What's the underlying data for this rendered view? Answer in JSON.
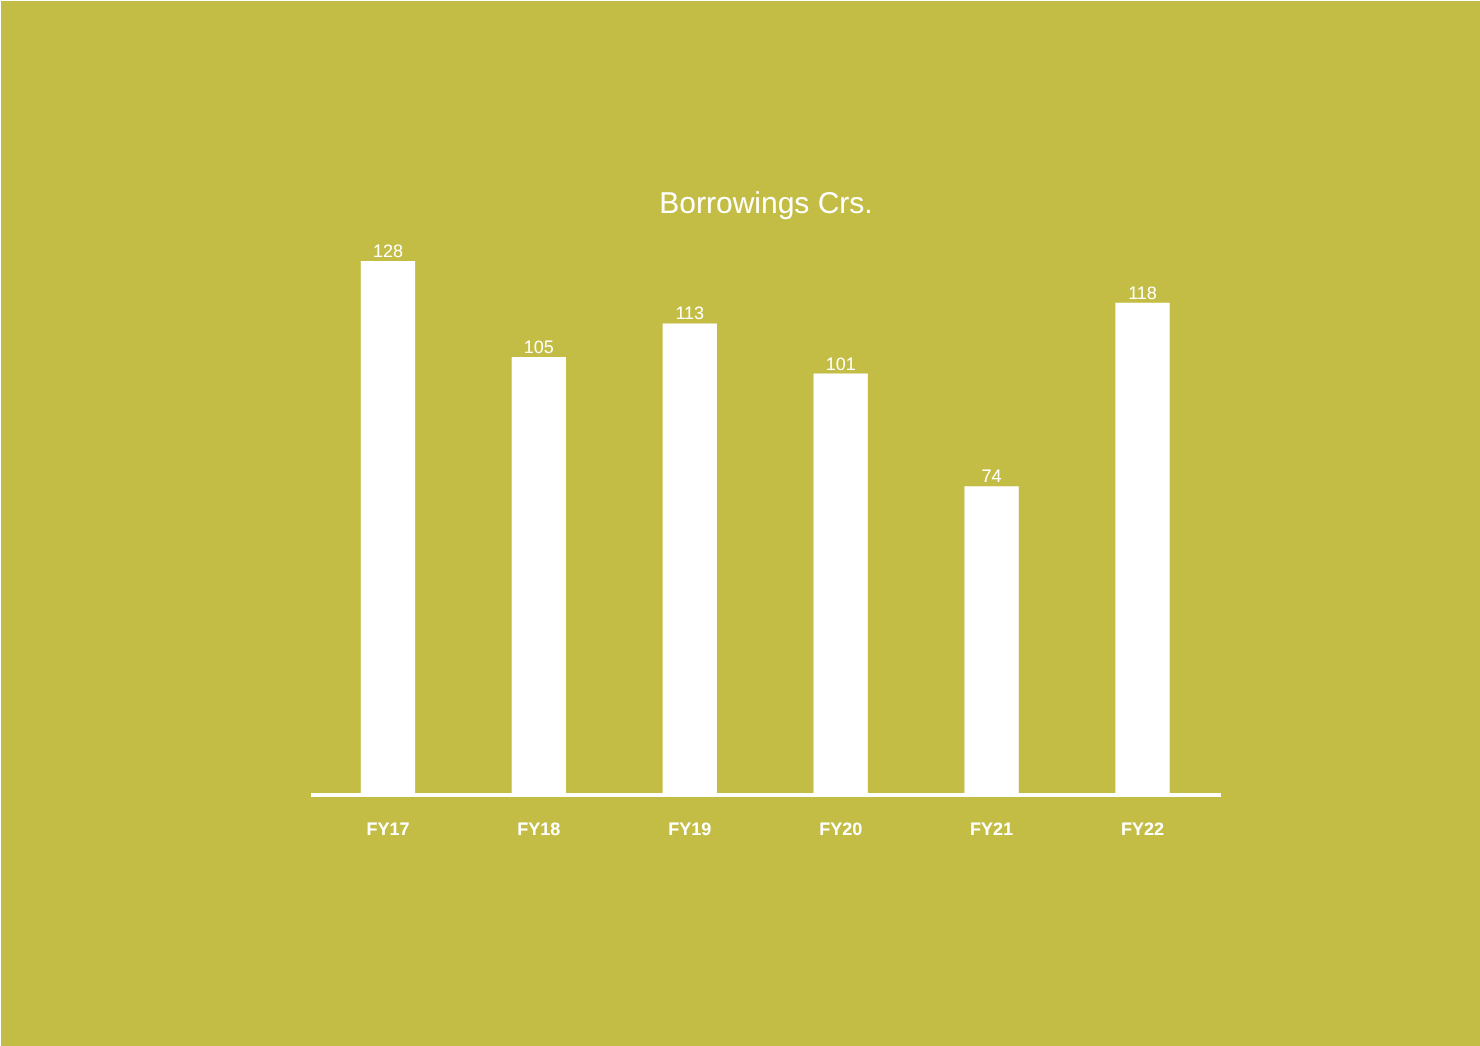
{
  "chart_data": {
    "type": "bar",
    "title": "Borrowings Crs.",
    "categories": [
      "FY17",
      "FY18",
      "FY19",
      "FY20",
      "FY21",
      "FY22"
    ],
    "values": [
      128,
      105,
      113,
      101,
      74,
      118
    ],
    "color": "#ffffff",
    "data_labels": true,
    "grid": false
  }
}
